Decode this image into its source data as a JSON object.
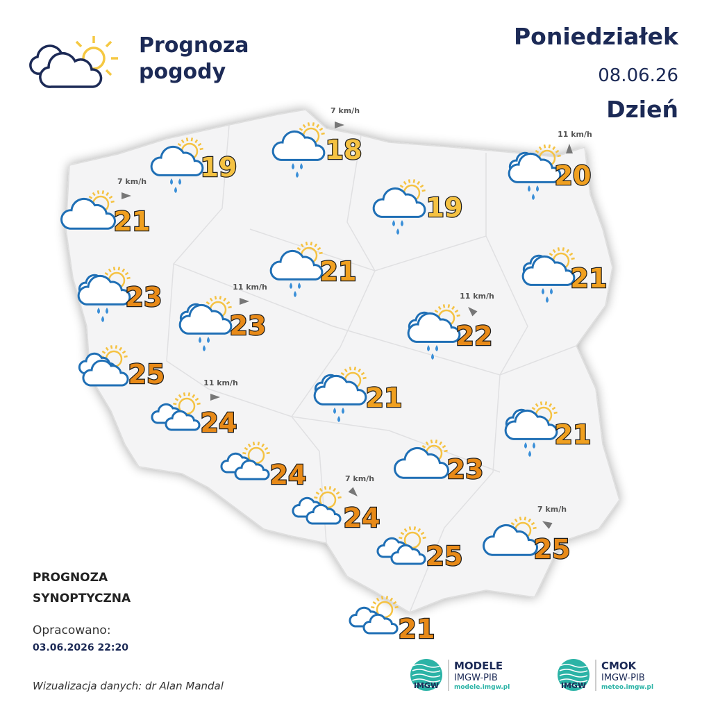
{
  "header": {
    "title_line1": "Prognoza",
    "title_line2": "pogody",
    "day": "Poniedziałek",
    "date": "08.06.26",
    "period": "Dzień"
  },
  "stations": [
    {
      "temperature": 18,
      "wind": "7 km/h"
    },
    {
      "temperature": 19
    },
    {
      "temperature": 21,
      "wind": "7 km/h"
    },
    {
      "temperature": 19
    },
    {
      "temperature": 20,
      "wind": "11 km/h"
    },
    {
      "temperature": 21
    },
    {
      "temperature": 21
    },
    {
      "temperature": 23
    },
    {
      "temperature": 23,
      "wind": "11 km/h"
    },
    {
      "temperature": 22,
      "wind": "11 km/h"
    },
    {
      "temperature": 25
    },
    {
      "temperature": 24,
      "wind": "11 km/h"
    },
    {
      "temperature": 21
    },
    {
      "temperature": 21
    },
    {
      "temperature": 24
    },
    {
      "temperature": 23
    },
    {
      "temperature": 24,
      "wind": "7 km/h"
    },
    {
      "temperature": 25
    },
    {
      "temperature": 25,
      "wind": "7 km/h"
    },
    {
      "temperature": 21
    }
  ],
  "footer": {
    "line1": "PROGNOZA",
    "line2": "SYNOPTYCZNA",
    "prepared": "Opracowano:",
    "timestamp": "03.06.2026 22:20",
    "credit": "Wizualizacja danych: dr Alan Mandal"
  },
  "logos": [
    {
      "badge": "IMGW",
      "name": "MODELE",
      "org": "IMGW-PIB",
      "url": "modele.imgw.pl"
    },
    {
      "badge": "IMGW",
      "name": "CMOK",
      "org": "IMGW-PIB",
      "url": "meteo.imgw.pl"
    }
  ]
}
